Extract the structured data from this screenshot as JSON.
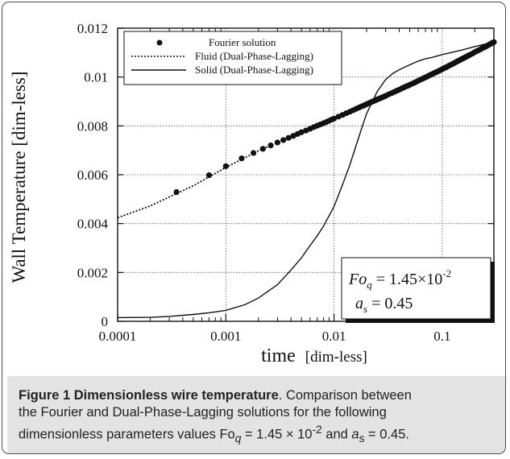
{
  "chart_data": {
    "type": "line",
    "title": "",
    "xlabel": "time",
    "xlabel_unit": "[dim-less]",
    "ylabel": "Wall Temperature [dim-less]",
    "x_scale": "log",
    "xlim": [
      0.0001,
      0.3
    ],
    "ylim": [
      0,
      0.012
    ],
    "grid": true,
    "legend_position": "top-left",
    "x_ticks": [
      0.0001,
      0.001,
      0.01,
      0.1
    ],
    "x_tick_labels": [
      "0.0001",
      "0.001",
      "0.01",
      "0.1"
    ],
    "y_ticks": [
      0,
      0.002,
      0.004,
      0.006,
      0.008,
      0.01,
      0.012
    ],
    "y_tick_labels": [
      "0",
      "0.002",
      "0.004",
      "0.006",
      "0.008",
      "0.01",
      "0.012"
    ],
    "series": [
      {
        "name": "Fourier solution",
        "style": "markers",
        "x": [
          0.00035,
          0.0007,
          0.001,
          0.0014,
          0.0018,
          0.0022,
          0.0026,
          0.003,
          0.0034,
          0.0038,
          0.0042,
          0.0046,
          0.005,
          0.0055,
          0.006,
          0.0065,
          0.007,
          0.0075,
          0.008,
          0.0085,
          0.009,
          0.0095,
          0.01,
          0.011,
          0.012,
          0.013,
          0.014,
          0.015,
          0.016,
          0.017,
          0.018,
          0.019,
          0.02,
          0.021,
          0.022,
          0.023,
          0.024,
          0.025,
          0.026,
          0.027,
          0.028,
          0.029,
          0.03,
          0.032,
          0.034,
          0.036,
          0.038,
          0.04,
          0.042,
          0.044,
          0.046,
          0.048,
          0.05,
          0.053,
          0.056,
          0.059,
          0.062,
          0.065,
          0.068,
          0.071,
          0.074,
          0.077,
          0.08,
          0.083,
          0.086,
          0.089,
          0.092,
          0.095,
          0.098,
          0.102,
          0.106,
          0.11,
          0.115,
          0.12,
          0.125,
          0.13,
          0.135,
          0.14,
          0.145,
          0.15,
          0.155,
          0.16,
          0.165,
          0.17,
          0.175,
          0.18,
          0.19,
          0.2,
          0.21,
          0.22,
          0.23,
          0.24,
          0.25,
          0.26,
          0.27,
          0.28,
          0.29,
          0.3
        ],
        "y": [
          0.00529,
          0.00598,
          0.00635,
          0.00667,
          0.00689,
          0.00706,
          0.0072,
          0.00732,
          0.00742,
          0.00751,
          0.00759,
          0.00767,
          0.00774,
          0.00781,
          0.00788,
          0.00795,
          0.00801,
          0.00806,
          0.00811,
          0.00816,
          0.00821,
          0.00826,
          0.0083,
          0.00838,
          0.00845,
          0.00852,
          0.00858,
          0.00864,
          0.0087,
          0.00875,
          0.0088,
          0.00884,
          0.00889,
          0.00893,
          0.00897,
          0.00901,
          0.00904,
          0.00908,
          0.00911,
          0.00914,
          0.00917,
          0.0092,
          0.00923,
          0.00929,
          0.00934,
          0.00939,
          0.00944,
          0.00948,
          0.00953,
          0.00957,
          0.00961,
          0.00964,
          0.00968,
          0.00973,
          0.00978,
          0.00983,
          0.00988,
          0.00992,
          0.00996,
          0.01,
          0.01004,
          0.01008,
          0.01011,
          0.01015,
          0.01018,
          0.01021,
          0.01024,
          0.01027,
          0.0103,
          0.01034,
          0.01038,
          0.01041,
          0.01046,
          0.0105,
          0.01054,
          0.01058,
          0.01062,
          0.01066,
          0.01069,
          0.01073,
          0.01076,
          0.01079,
          0.01082,
          0.01085,
          0.01088,
          0.01091,
          0.01096,
          0.01102,
          0.01107,
          0.01111,
          0.01116,
          0.0112,
          0.01124,
          0.01128,
          0.01132,
          0.01136,
          0.0114,
          0.01143
        ]
      },
      {
        "name": "Fluid (Dual-Phase-Lagging)",
        "style": "dotted",
        "x": [
          0.0001,
          0.0002,
          0.0005,
          0.001,
          0.002,
          0.005,
          0.01,
          0.02,
          0.05,
          0.1,
          0.2,
          0.3
        ],
        "y": [
          0.00424,
          0.00472,
          0.00555,
          0.0063,
          0.00698,
          0.00774,
          0.0083,
          0.00889,
          0.00968,
          0.01041,
          0.01102,
          0.01143
        ]
      },
      {
        "name": "Solid (Dual-Phase-Lagging)",
        "style": "solid",
        "x": [
          0.0001,
          0.0002,
          0.0003,
          0.0005,
          0.0007,
          0.001,
          0.0015,
          0.002,
          0.003,
          0.004,
          0.005,
          0.006,
          0.007,
          0.008,
          0.01,
          0.012,
          0.014,
          0.016,
          0.018,
          0.02,
          0.025,
          0.03,
          0.035,
          0.04,
          0.05,
          0.06,
          0.07,
          0.08,
          0.1,
          0.12,
          0.15,
          0.2,
          0.25,
          0.3
        ],
        "y": [
          0.00015,
          0.00016,
          0.0002,
          0.00028,
          0.00035,
          0.00045,
          0.00068,
          0.00095,
          0.0015,
          0.0021,
          0.0026,
          0.0031,
          0.0035,
          0.0039,
          0.0047,
          0.0056,
          0.0064,
          0.0072,
          0.0079,
          0.0085,
          0.0094,
          0.0099,
          0.01015,
          0.0103,
          0.0105,
          0.01065,
          0.01075,
          0.0108,
          0.01092,
          0.011,
          0.0111,
          0.01125,
          0.01135,
          0.01143
        ]
      }
    ],
    "annotation": {
      "line1": "Fo",
      "line1_sub": "q",
      "line1_rest": " = 1.45×10",
      "line1_sup": "-2",
      "line2": "a",
      "line2_sub": "s",
      "line2_rest": " = 0.45"
    }
  },
  "caption": {
    "title": "Figure 1 Dimensionless wire temperature",
    "text_line1": ". Comparison between",
    "text_line2": "the Fourier and Dual-Phase-Lagging solutions for the following",
    "text_line3_a": "dimensionless parameters values Fo",
    "sub_q": "q",
    "text_line3_b": " = 1.45 × 10",
    "sup_m2": "-2",
    "text_line3_c": " and ",
    "a_sym": "a",
    "sub_s": "s",
    "text_line3_d": " = 0.45."
  },
  "colors": {
    "background": "#ffffff",
    "axis": "#111111",
    "grid": "#555555",
    "caption_background": "#e3e3e3"
  }
}
